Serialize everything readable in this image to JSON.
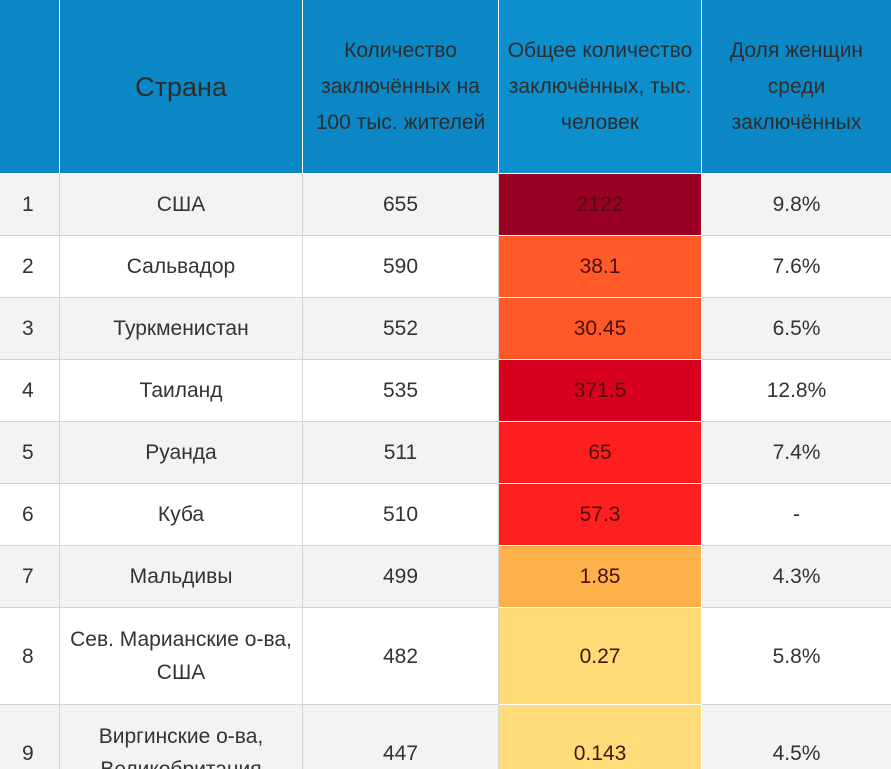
{
  "table": {
    "headers": {
      "rank": "",
      "country": "Страна",
      "rate": "Количество заключённых на 100 тыс. жителей",
      "total": "Общее количество заключённых, тыс. человек",
      "women": "Доля женщин среди заключённых"
    }
  },
  "chart_data": {
    "type": "table",
    "columns": [
      "",
      "Страна",
      "Количество заключённых на 100 тыс. жителей",
      "Общее количество заключённых, тыс. человек",
      "Доля женщин среди заключённых"
    ],
    "rows": [
      {
        "rank": "1",
        "country": "США",
        "rate": "655",
        "total": "2122",
        "women": "9.8%",
        "heat_color": "#9a0024"
      },
      {
        "rank": "2",
        "country": "Сальвадор",
        "rate": "590",
        "total": "38.1",
        "women": "7.6%",
        "heat_color": "#ff5a28"
      },
      {
        "rank": "3",
        "country": "Туркменистан",
        "rate": "552",
        "total": "30.45",
        "women": "6.5%",
        "heat_color": "#ff5828"
      },
      {
        "rank": "4",
        "country": "Таиланд",
        "rate": "535",
        "total": "371.5",
        "women": "12.8%",
        "heat_color": "#d8001f"
      },
      {
        "rank": "5",
        "country": "Руанда",
        "rate": "511",
        "total": "65",
        "women": "7.4%",
        "heat_color": "#fe1e1e"
      },
      {
        "rank": "6",
        "country": "Куба",
        "rate": "510",
        "total": "57.3",
        "women": "-",
        "heat_color": "#fe1f1f"
      },
      {
        "rank": "7",
        "country": "Мальдивы",
        "rate": "499",
        "total": "1.85",
        "women": "4.3%",
        "heat_color": "#feb14b"
      },
      {
        "rank": "8",
        "country": "Сев. Марианские о-ва, США",
        "rate": "482",
        "total": "0.27",
        "women": "5.8%",
        "heat_color": "#ffdb77"
      },
      {
        "rank": "9",
        "country": "Виргинские о-ва, Великобритания",
        "rate": "447",
        "total": "0.143",
        "women": "4.5%",
        "heat_color": "#ffdb79"
      }
    ]
  }
}
